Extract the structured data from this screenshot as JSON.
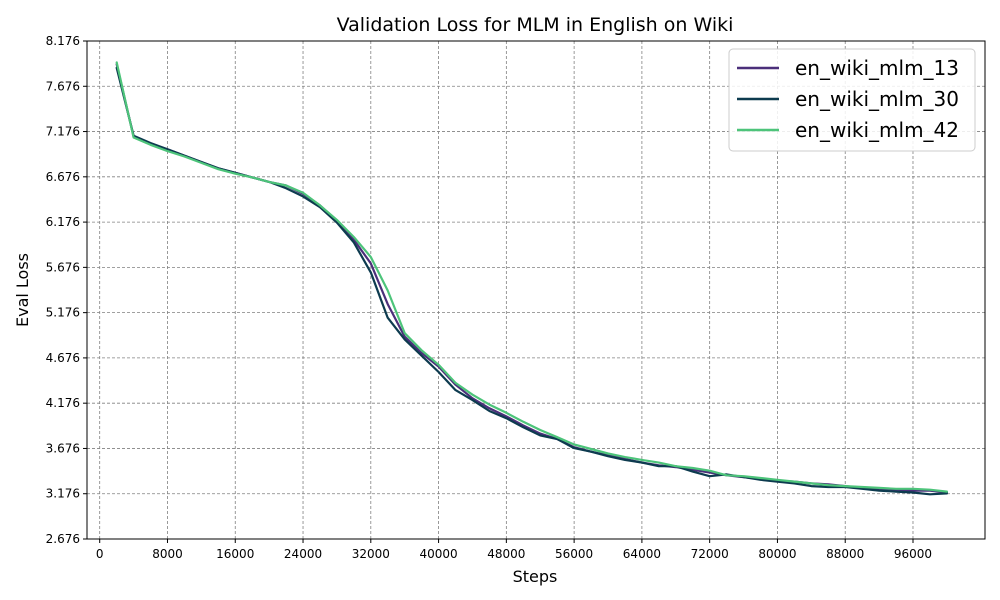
{
  "chart_data": {
    "type": "line",
    "title": "Validation Loss for MLM in English on Wiki",
    "xlabel": "Steps",
    "ylabel": "Eval Loss",
    "xlim": [
      -1500,
      104500
    ],
    "ylim": [
      2.676,
      8.176
    ],
    "xticks": [
      0,
      8000,
      16000,
      24000,
      32000,
      40000,
      48000,
      56000,
      64000,
      72000,
      80000,
      88000,
      96000
    ],
    "yticks": [
      2.676,
      3.176,
      3.676,
      4.176,
      4.676,
      5.176,
      5.676,
      6.176,
      6.676,
      7.176,
      7.676,
      8.176
    ],
    "grid": true,
    "legend_position": "top-right",
    "series": [
      {
        "name": "en_wiki_mlm_13",
        "color": "#4b2f7a",
        "x": [
          2000,
          4000,
          6000,
          8000,
          10000,
          12000,
          14000,
          16000,
          18000,
          20000,
          22000,
          24000,
          26000,
          28000,
          30000,
          32000,
          34000,
          36000,
          38000,
          40000,
          42000,
          44000,
          46000,
          48000,
          50000,
          52000,
          54000,
          56000,
          58000,
          60000,
          62000,
          64000,
          66000,
          68000,
          70000,
          72000,
          74000,
          76000,
          78000,
          80000,
          82000,
          84000,
          86000,
          88000,
          90000,
          92000,
          94000,
          96000,
          98000,
          100000
        ],
        "values": [
          7.92,
          7.12,
          7.04,
          6.98,
          6.91,
          6.84,
          6.77,
          6.72,
          6.67,
          6.62,
          6.58,
          6.49,
          6.36,
          6.19,
          5.98,
          5.72,
          5.27,
          4.91,
          4.73,
          4.58,
          4.38,
          4.23,
          4.12,
          4.03,
          3.93,
          3.84,
          3.78,
          3.69,
          3.64,
          3.6,
          3.56,
          3.52,
          3.49,
          3.47,
          3.44,
          3.41,
          3.38,
          3.36,
          3.34,
          3.32,
          3.31,
          3.29,
          3.28,
          3.26,
          3.24,
          3.23,
          3.22,
          3.21,
          3.21,
          3.19
        ]
      },
      {
        "name": "en_wiki_mlm_30",
        "color": "#0d3b4f",
        "x": [
          2000,
          4000,
          6000,
          8000,
          10000,
          12000,
          14000,
          16000,
          18000,
          20000,
          22000,
          24000,
          26000,
          28000,
          30000,
          32000,
          34000,
          36000,
          38000,
          40000,
          42000,
          44000,
          46000,
          48000,
          50000,
          52000,
          54000,
          56000,
          58000,
          60000,
          62000,
          64000,
          66000,
          68000,
          70000,
          72000,
          74000,
          76000,
          78000,
          80000,
          82000,
          84000,
          86000,
          88000,
          90000,
          92000,
          94000,
          96000,
          98000,
          100000
        ],
        "values": [
          7.88,
          7.13,
          7.05,
          6.98,
          6.91,
          6.84,
          6.77,
          6.72,
          6.67,
          6.62,
          6.55,
          6.46,
          6.34,
          6.17,
          5.95,
          5.62,
          5.12,
          4.88,
          4.7,
          4.52,
          4.32,
          4.21,
          4.09,
          4.01,
          3.91,
          3.82,
          3.78,
          3.68,
          3.64,
          3.59,
          3.55,
          3.52,
          3.48,
          3.48,
          3.42,
          3.37,
          3.39,
          3.36,
          3.33,
          3.31,
          3.29,
          3.26,
          3.25,
          3.25,
          3.23,
          3.21,
          3.2,
          3.19,
          3.17,
          3.18
        ]
      },
      {
        "name": "en_wiki_mlm_42",
        "color": "#4dc47a",
        "x": [
          2000,
          4000,
          6000,
          8000,
          10000,
          12000,
          14000,
          16000,
          18000,
          20000,
          22000,
          24000,
          26000,
          28000,
          30000,
          32000,
          34000,
          36000,
          38000,
          40000,
          42000,
          44000,
          46000,
          48000,
          50000,
          52000,
          54000,
          56000,
          58000,
          60000,
          62000,
          64000,
          66000,
          68000,
          70000,
          72000,
          74000,
          76000,
          78000,
          80000,
          82000,
          84000,
          86000,
          88000,
          90000,
          92000,
          94000,
          96000,
          98000,
          100000
        ],
        "values": [
          7.94,
          7.11,
          7.03,
          6.96,
          6.9,
          6.83,
          6.76,
          6.71,
          6.67,
          6.62,
          6.58,
          6.5,
          6.36,
          6.2,
          6.01,
          5.79,
          5.42,
          4.95,
          4.76,
          4.6,
          4.4,
          4.27,
          4.16,
          4.07,
          3.97,
          3.88,
          3.8,
          3.72,
          3.67,
          3.62,
          3.58,
          3.55,
          3.52,
          3.48,
          3.46,
          3.43,
          3.38,
          3.37,
          3.35,
          3.33,
          3.31,
          3.29,
          3.27,
          3.26,
          3.25,
          3.24,
          3.23,
          3.23,
          3.22,
          3.2
        ]
      }
    ]
  }
}
